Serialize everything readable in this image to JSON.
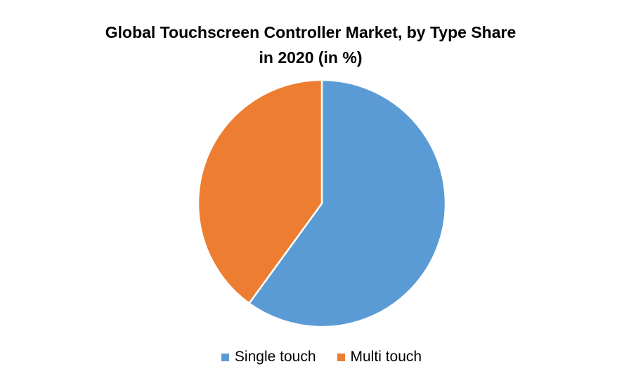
{
  "chart_data": {
    "type": "pie",
    "title": "Global Touchscreen Controller Market, by  Type Share\nin 2020 (in %)",
    "slices": [
      {
        "label": "Single touch",
        "value": 60,
        "color": "#5B9BD5"
      },
      {
        "label": "Multi touch",
        "value": 40,
        "color": "#ED7D31"
      }
    ],
    "start_angle_deg": 0,
    "direction": "clockwise",
    "legend_position": "bottom"
  }
}
